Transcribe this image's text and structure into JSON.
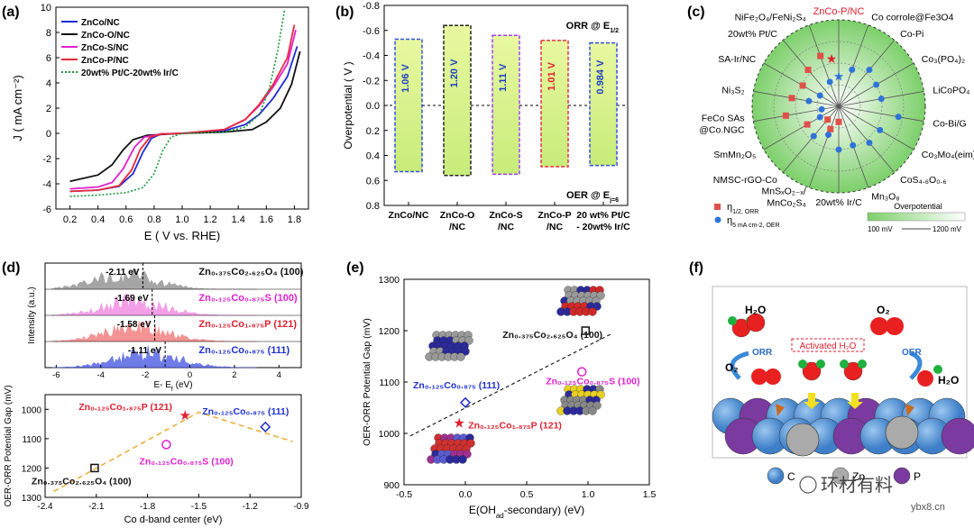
{
  "panels": {
    "a": "(a)",
    "b": "(b)",
    "c": "(c)",
    "d": "(d)",
    "e": "(e)",
    "f": "(f)"
  },
  "colors": {
    "znco_nc": "#1f2bd6",
    "znco_o_nc": "#111111",
    "znco_s_nc": "#e020d0",
    "znco_p_nc": "#e8283a",
    "ptc": "#1a9a3a",
    "bar_fill": "#d8f08a",
    "orange": "#f0b040"
  },
  "chart_data": [
    {
      "id": "a",
      "type": "line",
      "xlabel": "E ( V vs. RHE)",
      "ylabel": "J ( mA cm⁻²)",
      "xlim": [
        0.1,
        1.9
      ],
      "ylim": [
        -6,
        10
      ],
      "xticks": [
        "0.2",
        "0.4",
        "0.6",
        "0.8",
        "1.0",
        "1.2",
        "1.4",
        "1.6",
        "1.8"
      ],
      "yticks": [
        "-6",
        "-4",
        "-2",
        "0",
        "2",
        "4",
        "6",
        "8",
        "10"
      ],
      "legend": [
        "ZnCo/NC",
        "ZnCo-O/NC",
        "ZnCo-S/NC",
        "ZnCo-P/NC",
        "20wt% Pt/C-20wt% Ir/C"
      ],
      "series": [
        {
          "name": "ZnCo/NC",
          "key": "znco_nc",
          "points": [
            [
              0.2,
              -4.6
            ],
            [
              0.4,
              -4.5
            ],
            [
              0.55,
              -4.2
            ],
            [
              0.65,
              -3.2
            ],
            [
              0.72,
              -1.5
            ],
            [
              0.78,
              -0.4
            ],
            [
              0.85,
              -0.05
            ],
            [
              1.0,
              0
            ],
            [
              1.3,
              0.2
            ],
            [
              1.45,
              0.7
            ],
            [
              1.55,
              1.5
            ],
            [
              1.65,
              2.8
            ],
            [
              1.75,
              4.5
            ],
            [
              1.82,
              6.9
            ]
          ]
        },
        {
          "name": "ZnCo-O/NC",
          "key": "znco_o_nc",
          "points": [
            [
              0.2,
              -3.8
            ],
            [
              0.4,
              -3.3
            ],
            [
              0.5,
              -2.5
            ],
            [
              0.58,
              -1.3
            ],
            [
              0.65,
              -0.5
            ],
            [
              0.75,
              -0.15
            ],
            [
              1.0,
              0
            ],
            [
              1.3,
              0.1
            ],
            [
              1.5,
              0.3
            ],
            [
              1.6,
              0.9
            ],
            [
              1.7,
              2.0
            ],
            [
              1.78,
              3.9
            ],
            [
              1.84,
              6.5
            ]
          ]
        },
        {
          "name": "ZnCo-S/NC",
          "key": "znco_s_nc",
          "points": [
            [
              0.2,
              -4.4
            ],
            [
              0.4,
              -4.25
            ],
            [
              0.5,
              -3.9
            ],
            [
              0.58,
              -2.8
            ],
            [
              0.66,
              -1.1
            ],
            [
              0.73,
              -0.3
            ],
            [
              0.85,
              -0.05
            ],
            [
              1.0,
              0
            ],
            [
              1.3,
              0.3
            ],
            [
              1.45,
              1.1
            ],
            [
              1.55,
              2.2
            ],
            [
              1.65,
              3.7
            ],
            [
              1.75,
              5.5
            ],
            [
              1.81,
              8.2
            ]
          ]
        },
        {
          "name": "ZnCo-P/NC",
          "key": "znco_p_nc",
          "points": [
            [
              0.2,
              -4.6
            ],
            [
              0.4,
              -4.5
            ],
            [
              0.55,
              -4.15
            ],
            [
              0.64,
              -2.9
            ],
            [
              0.7,
              -1.3
            ],
            [
              0.77,
              -0.3
            ],
            [
              0.85,
              -0.05
            ],
            [
              1.0,
              0
            ],
            [
              1.3,
              0.3
            ],
            [
              1.45,
              1.1
            ],
            [
              1.55,
              2.3
            ],
            [
              1.65,
              3.9
            ],
            [
              1.75,
              6.0
            ],
            [
              1.8,
              8.6
            ]
          ]
        },
        {
          "name": "20wt% Pt/C-20wt% Ir/C",
          "key": "ptc",
          "dashed": true,
          "points": [
            [
              0.2,
              -5.0
            ],
            [
              0.4,
              -4.9
            ],
            [
              0.6,
              -4.7
            ],
            [
              0.72,
              -4.3
            ],
            [
              0.8,
              -3.2
            ],
            [
              0.86,
              -1.4
            ],
            [
              0.92,
              -0.3
            ],
            [
              1.0,
              0
            ],
            [
              1.3,
              0.1
            ],
            [
              1.45,
              0.5
            ],
            [
              1.55,
              1.5
            ],
            [
              1.62,
              3.5
            ],
            [
              1.68,
              6.5
            ],
            [
              1.73,
              9.8
            ]
          ]
        }
      ]
    },
    {
      "id": "b",
      "type": "bar",
      "ylabel": "Overpotential ( V )",
      "ylim": [
        -0.8,
        0.8
      ],
      "yticks": [
        "-0.8",
        "-0.6",
        "-0.4",
        "-0.2",
        "0.0",
        "0.2",
        "0.4",
        "0.6",
        "0.8"
      ],
      "orr_label": "ORR @ E",
      "orr_sub": "1/2",
      "oer_label": "OER @ E",
      "oer_sub": "j=6",
      "categories": [
        [
          "ZnCo/NC"
        ],
        [
          "ZnCo-O",
          "/NC"
        ],
        [
          "ZnCo-S",
          "/NC"
        ],
        [
          "ZnCo-P",
          "/NC"
        ],
        [
          "20 wt% Pt/C",
          "- 20wt% Ir/C"
        ]
      ],
      "orr": [
        -0.53,
        -0.64,
        -0.56,
        -0.52,
        -0.5
      ],
      "oer": [
        0.53,
        0.56,
        0.55,
        0.49,
        0.48
      ],
      "gaps": [
        "1.06 V",
        "1.20 V",
        "1.11 V",
        "1.01 V",
        "0.984 V"
      ],
      "edge": [
        "#3050e0",
        "#222222",
        "#a040f0",
        "#e83040",
        "#3050e0"
      ],
      "label_color": [
        "#2040c0",
        "#2040c0",
        "#2040c0",
        "#e02030",
        "#2040c0"
      ]
    },
    {
      "id": "c",
      "type": "radar",
      "title": "ZnCo-P/NC",
      "spokes": [
        "Co corrole@Fe3O4",
        "Co-Pi",
        "Co3(PO4)2",
        "LiCoPO4",
        "Co-Bi/G",
        "Co3Mo4(eim)6",
        "CoS4.6O0.6",
        "Mn3O8",
        "20wt% Ir/C",
        "MnSxO2-x/MnCo2S4",
        "NMSC-rGO-Co",
        "SmMn2O5",
        "FeCo SAs @Co.NGC",
        "Ni3S2",
        "SA-Ir/NC",
        "20wt% Pt/C",
        "NiFe2O4/FeNi2S4"
      ],
      "label_lines": [
        [
          "Co corrole@Fe3O4"
        ],
        [
          "Co-Pi"
        ],
        [
          "Co₃(PO₄)₂"
        ],
        [
          "LiCoPO₄"
        ],
        [
          "Co-Bi/G"
        ],
        [
          "Co₃Mo₄(eim)₆"
        ],
        [
          "CoS₄.₆O₀.₆"
        ],
        [
          "Mn₃O₈"
        ],
        [
          "20wt% Ir/C"
        ],
        [
          "MnSₓO₂₋ₓ/",
          "MnCo₂S₄"
        ],
        [
          "NMSC-rGO-Co"
        ],
        [
          "SmMn₂O₅"
        ],
        [
          "FeCo SAs",
          "@Co.NGC"
        ],
        [
          "Ni₃S₂"
        ],
        [
          "SA-Ir/NC"
        ],
        [
          "20wt% Pt/C"
        ],
        [
          "NiFe₂O₄/FeNi₂S₄"
        ]
      ],
      "orr_points": [
        [
          13,
          0.55
        ],
        [
          14,
          0.48
        ],
        [
          15,
          0.55
        ],
        [
          16,
          0.62
        ],
        [
          12,
          0.62
        ],
        [
          11,
          0.42
        ],
        [
          10,
          0.2
        ],
        [
          9,
          0.28
        ],
        [
          8,
          0.18
        ]
      ],
      "oer_points": [
        [
          0,
          0.45
        ],
        [
          1,
          0.55
        ],
        [
          2,
          0.5
        ],
        [
          3,
          0.5
        ],
        [
          4,
          0.7
        ],
        [
          5,
          0.55
        ],
        [
          6,
          0.55
        ],
        [
          7,
          0.48
        ],
        [
          8,
          0.5
        ],
        [
          9,
          0.35
        ],
        [
          10,
          0.45
        ],
        [
          11,
          0.25
        ],
        [
          12,
          0.2
        ],
        [
          13,
          0.35
        ],
        [
          14,
          0.25
        ],
        [
          16,
          0.3
        ]
      ],
      "star_orr": 0.55,
      "star_oer": 0.35,
      "legend": {
        "orr": "η",
        "orr_sub": "1/2, ORR",
        "oer": "η",
        "oer_sub": "5 mA cm-2, OER"
      },
      "scale": {
        "title": "Overpotential",
        "min": "100 mV",
        "max": "1200 mV"
      }
    },
    {
      "id": "d",
      "type": "scatter",
      "xlabel": "Co d-band center (eV)",
      "ylabel": "OER-ORR Potential Gap (mV)",
      "xlim": [
        -2.4,
        -0.9
      ],
      "ylim": [
        1300,
        950
      ],
      "xticks": [
        "-2.4",
        "-2.1",
        "-1.8",
        "-1.5",
        "-1.2",
        "-0.9"
      ],
      "yticks": [
        "1000",
        "1100",
        "1200",
        "1300"
      ],
      "points": [
        {
          "x": -2.11,
          "y": 1200,
          "label": "Zn₀.₃₇₅Co₂.₆₂₅O₄ (100)",
          "color": "#111111",
          "marker": "square"
        },
        {
          "x": -1.69,
          "y": 1120,
          "label": "Zn₀.₁₂₅Co₀.₈₇₅S (100)",
          "color": "#e020d0",
          "marker": "circle"
        },
        {
          "x": -1.58,
          "y": 1020,
          "label": "Zn₀.₁₂₅Co₁.₈₇₅P (121)",
          "color": "#e02030",
          "marker": "star"
        },
        {
          "x": -1.11,
          "y": 1060,
          "label": "Zn₀.₁₂₅Co₀.₈₇₅ (111)",
          "color": "#2030d0",
          "marker": "diamond"
        }
      ],
      "volcano": [
        [
          -2.35,
          1280
        ],
        [
          -1.5,
          1010
        ],
        [
          -0.95,
          1110
        ]
      ],
      "dos": {
        "xlabel": "E- E",
        "xsub": "f",
        "xunit": " (eV)",
        "ylabel": "Intensity (a.u.)",
        "xticks": [
          "-6",
          "-4",
          "-2",
          "0",
          "2",
          "4"
        ],
        "bands": [
          {
            "label": "Zn₀.₃₇₅Co₂.₆₂₅O₄ (100)",
            "center": "-2.11 eV",
            "dc": -2.11,
            "color": "#888888",
            "labelcolor": "#111111"
          },
          {
            "label": "Zn₀.₁₂₅Co₀.₈₇₅S (100)",
            "center": "-1.69 eV",
            "dc": -1.69,
            "color": "#f080e0",
            "labelcolor": "#e020d0"
          },
          {
            "label": "Zn₀.₁₂₅Co₁.₈₇₅P (121)",
            "center": "-1.58 eV",
            "dc": -1.58,
            "color": "#f07070",
            "labelcolor": "#e02030"
          },
          {
            "label": "Zn₀.₁₂₅Co₀.₈₇₅ (111)",
            "center": "-1.11 eV",
            "dc": -1.11,
            "color": "#4050e0",
            "labelcolor": "#2030d0"
          }
        ]
      }
    },
    {
      "id": "e",
      "type": "scatter",
      "xlabel": "E(OH",
      "xsub": "ad",
      "xlabel2": "-secondary) (eV)",
      "ylabel": "OER-ORR Potential Gap (mV)",
      "xlim": [
        -0.5,
        1.5
      ],
      "ylim": [
        900,
        1300
      ],
      "xticks": [
        "-0.5",
        "0.0",
        "0.5",
        "1.0",
        "1.5"
      ],
      "yticks": [
        "900",
        "1000",
        "1100",
        "1200",
        "1300"
      ],
      "points": [
        {
          "x": 0.98,
          "y": 1200,
          "label": "Zn₀.₃₇₅Co₂.₆₂₅O₄ (100)",
          "color": "#111111",
          "marker": "square"
        },
        {
          "x": 0.95,
          "y": 1120,
          "label": "Zn₀.₁₂₅Co₀.₈₇₅S (100)",
          "color": "#e020d0",
          "marker": "circle"
        },
        {
          "x": -0.05,
          "y": 1020,
          "label": "Zn₀.₁₂₅Co₁.₈₇₅P (121)",
          "color": "#e02030",
          "marker": "star"
        },
        {
          "x": 0.0,
          "y": 1060,
          "label": "Zn₀.₁₂₅Co₀.₈₇₅ (111)",
          "color": "#2030d0",
          "marker": "diamond"
        }
      ],
      "trend": [
        [
          -0.45,
          995
        ],
        [
          1.2,
          1195
        ]
      ]
    }
  ],
  "schematic": {
    "h2o_top": "H₂O",
    "o2_top": "O₂",
    "o2_left": "O₂",
    "h2o_right": "H₂O",
    "orr": "ORR",
    "oer": "OER",
    "activated": "Activated H₂O",
    "legend": [
      "C",
      "Zn",
      "P"
    ]
  },
  "watermark": {
    "main": "环材有料",
    "site": "ybx8.cn"
  }
}
